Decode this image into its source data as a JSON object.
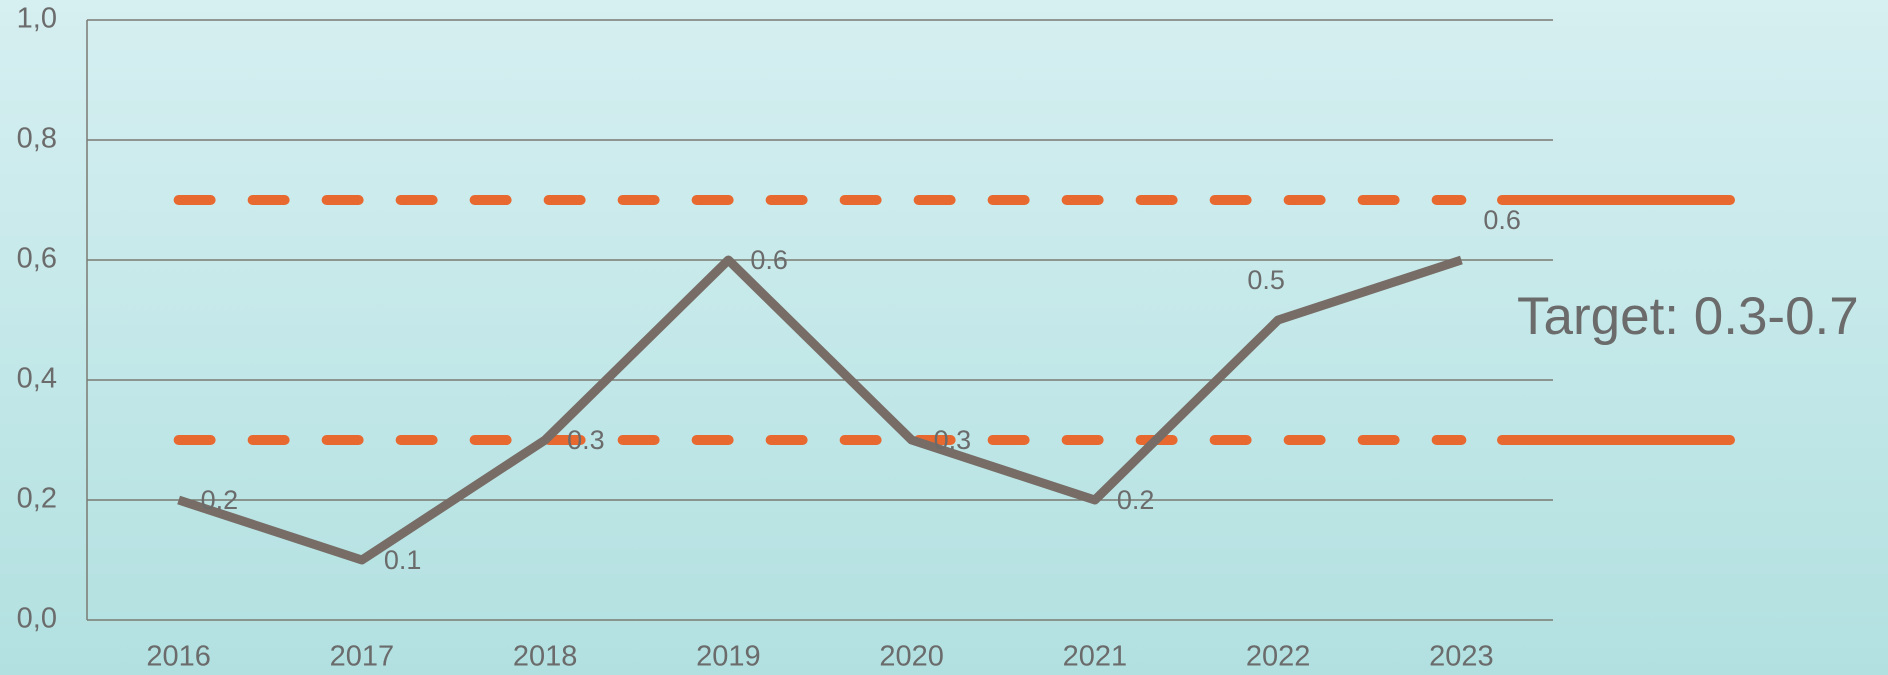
{
  "chart_data": {
    "type": "line",
    "categories": [
      "2016",
      "2017",
      "2018",
      "2019",
      "2020",
      "2021",
      "2022",
      "2023"
    ],
    "series": [
      {
        "color": "#776d66",
        "values": [
          0.2,
          0.1,
          0.3,
          0.6,
          0.3,
          0.2,
          0.5,
          0.6
        ]
      }
    ],
    "ylim": [
      0,
      1
    ],
    "yticks": [
      {
        "value": 0,
        "label": "0,0"
      },
      {
        "value": 0.2,
        "label": "0,2"
      },
      {
        "value": 0.4,
        "label": "0,4"
      },
      {
        "value": 0.6,
        "label": "0,6"
      },
      {
        "value": 0.8,
        "label": "0,8"
      },
      {
        "value": 1,
        "label": "1,0"
      }
    ],
    "grid": true,
    "reference_lines": [
      {
        "value": 0.3,
        "color": "#e8692f"
      },
      {
        "value": 0.7,
        "color": "#e8692f"
      }
    ],
    "annotation": "Target: 0.3-0.7"
  }
}
